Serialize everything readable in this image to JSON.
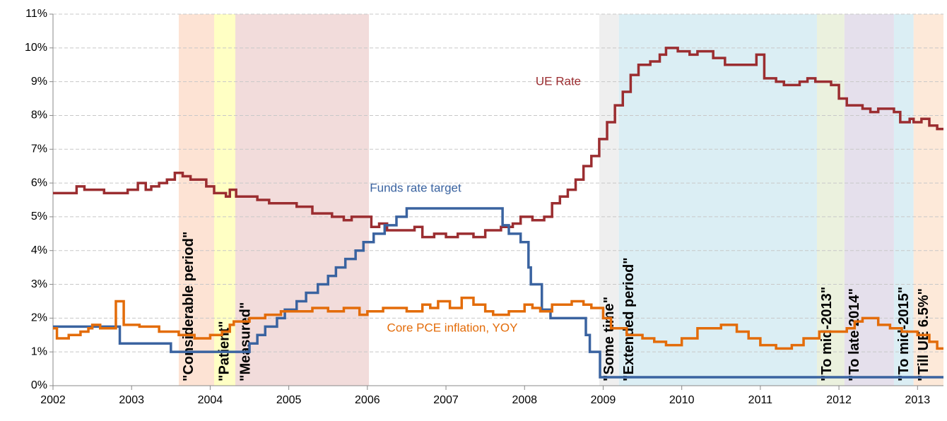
{
  "chart_data": {
    "type": "line",
    "step": true,
    "grid": true,
    "xlim": [
      2002,
      2013.33
    ],
    "ylim": [
      0,
      11
    ],
    "xticks": [
      2002,
      2003,
      2004,
      2005,
      2006,
      2007,
      2008,
      2009,
      2010,
      2011,
      2012,
      2013
    ],
    "yticks": [
      {
        "value": 0,
        "label": "0%"
      },
      {
        "value": 1,
        "label": "1%"
      },
      {
        "value": 2,
        "label": "2%"
      },
      {
        "value": 3,
        "label": "3%"
      },
      {
        "value": 4,
        "label": "4%"
      },
      {
        "value": 5,
        "label": "5%"
      },
      {
        "value": 6,
        "label": "6%"
      },
      {
        "value": 7,
        "label": "7%"
      },
      {
        "value": 8,
        "label": "8%"
      },
      {
        "value": 9,
        "label": "9%"
      },
      {
        "value": 10,
        "label": "10%"
      },
      {
        "value": 11,
        "label": "11%"
      }
    ],
    "bands": [
      {
        "label": "\"Considerable period\"",
        "start": 2003.6,
        "end": 2004.05,
        "color": "#fde3d4"
      },
      {
        "label": "\"Patient\"",
        "start": 2004.05,
        "end": 2004.32,
        "color": "#ffffc4"
      },
      {
        "label": "\"Measured\"",
        "start": 2004.32,
        "end": 2006.02,
        "color": "#f2dcdb"
      },
      {
        "label": "\"Some time\"",
        "start": 2008.95,
        "end": 2009.2,
        "color": "#efefef"
      },
      {
        "label": "\"Extended period\"",
        "start": 2009.2,
        "end": 2011.72,
        "color": "#dbeef4"
      },
      {
        "label": "\"To mid-2013\"",
        "start": 2011.72,
        "end": 2012.07,
        "color": "#ebf1de"
      },
      {
        "label": "\"To late 2014\"",
        "start": 2012.07,
        "end": 2012.7,
        "color": "#e5e0ec"
      },
      {
        "label": "\"To mid-2015\"",
        "start": 2012.7,
        "end": 2012.95,
        "color": "#dbeef4"
      },
      {
        "label": "\"Till UE 6.5%\"",
        "start": 2012.95,
        "end": 2013.33,
        "color": "#fde9d9"
      }
    ],
    "series": [
      {
        "name": "UE Rate",
        "color": "#9b2d30",
        "x": [
          2002.0,
          2002.3,
          2002.4,
          2002.65,
          2002.95,
          2003.08,
          2003.18,
          2003.25,
          2003.35,
          2003.45,
          2003.55,
          2003.65,
          2003.75,
          2003.95,
          2004.05,
          2004.2,
          2004.25,
          2004.33,
          2004.6,
          2004.75,
          2004.95,
          2005.1,
          2005.3,
          2005.55,
          2005.7,
          2005.8,
          2006.05,
          2006.15,
          2006.25,
          2006.6,
          2006.7,
          2006.85,
          2007.0,
          2007.15,
          2007.35,
          2007.5,
          2007.7,
          2007.85,
          2007.95,
          2008.1,
          2008.25,
          2008.35,
          2008.45,
          2008.55,
          2008.65,
          2008.75,
          2008.85,
          2008.95,
          2009.05,
          2009.15,
          2009.25,
          2009.35,
          2009.45,
          2009.6,
          2009.72,
          2009.8,
          2009.95,
          2010.1,
          2010.2,
          2010.4,
          2010.55,
          2010.95,
          2011.05,
          2011.2,
          2011.3,
          2011.5,
          2011.6,
          2011.7,
          2011.9,
          2012.0,
          2012.1,
          2012.3,
          2012.4,
          2012.5,
          2012.7,
          2012.78,
          2012.9,
          2012.95,
          2013.05,
          2013.15,
          2013.25,
          2013.33
        ],
        "values": [
          5.7,
          5.9,
          5.8,
          5.7,
          5.8,
          6.0,
          5.8,
          5.9,
          6.0,
          6.1,
          6.3,
          6.2,
          6.1,
          5.9,
          5.7,
          5.6,
          5.8,
          5.6,
          5.5,
          5.4,
          5.4,
          5.3,
          5.1,
          5.0,
          4.9,
          5.0,
          4.7,
          4.8,
          4.6,
          4.7,
          4.4,
          4.5,
          4.4,
          4.5,
          4.4,
          4.6,
          4.7,
          4.8,
          5.0,
          4.9,
          5.0,
          5.4,
          5.6,
          5.8,
          6.1,
          6.5,
          6.8,
          7.3,
          7.8,
          8.3,
          8.7,
          9.2,
          9.5,
          9.6,
          9.8,
          10.0,
          9.9,
          9.8,
          9.9,
          9.7,
          9.5,
          9.8,
          9.1,
          9.0,
          8.9,
          9.0,
          9.1,
          9.0,
          8.9,
          8.5,
          8.3,
          8.2,
          8.1,
          8.2,
          8.1,
          7.8,
          7.9,
          7.8,
          7.9,
          7.7,
          7.6,
          7.6
        ]
      },
      {
        "name": "Funds rate target",
        "color": "#3a63a0",
        "x": [
          2002.0,
          2002.85,
          2003.5,
          2004.5,
          2004.6,
          2004.7,
          2004.85,
          2004.95,
          2005.1,
          2005.22,
          2005.37,
          2005.5,
          2005.6,
          2005.72,
          2005.85,
          2005.95,
          2006.08,
          2006.22,
          2006.37,
          2006.5,
          2007.72,
          2007.8,
          2007.95,
          2008.05,
          2008.08,
          2008.22,
          2008.33,
          2008.78,
          2008.83,
          2008.96,
          2013.33
        ],
        "values": [
          1.75,
          1.25,
          1.0,
          1.25,
          1.5,
          1.75,
          2.0,
          2.25,
          2.5,
          2.75,
          3.0,
          3.25,
          3.5,
          3.75,
          4.0,
          4.25,
          4.5,
          4.75,
          5.0,
          5.25,
          4.75,
          4.5,
          4.25,
          3.5,
          3.0,
          2.25,
          2.0,
          1.5,
          1.0,
          0.25,
          0.25
        ]
      },
      {
        "name": "Core PCE inflation, YOY",
        "color": "#e36c0a",
        "x": [
          2002.0,
          2002.05,
          2002.2,
          2002.35,
          2002.45,
          2002.5,
          2002.6,
          2002.8,
          2002.9,
          2003.1,
          2003.35,
          2003.6,
          2003.8,
          2004.0,
          2004.15,
          2004.25,
          2004.3,
          2004.5,
          2004.7,
          2004.9,
          2005.3,
          2005.5,
          2005.7,
          2005.9,
          2006.0,
          2006.2,
          2006.5,
          2006.7,
          2006.8,
          2006.9,
          2007.05,
          2007.2,
          2007.35,
          2007.5,
          2007.6,
          2007.8,
          2008.0,
          2008.1,
          2008.2,
          2008.35,
          2008.6,
          2008.75,
          2008.85,
          2009.0,
          2009.1,
          2009.3,
          2009.5,
          2009.65,
          2009.8,
          2010.0,
          2010.2,
          2010.5,
          2010.7,
          2010.85,
          2011.0,
          2011.2,
          2011.4,
          2011.55,
          2011.75,
          2012.1,
          2012.2,
          2012.3,
          2012.5,
          2012.65,
          2012.8,
          2013.0,
          2013.15,
          2013.25,
          2013.33
        ],
        "values": [
          1.7,
          1.4,
          1.5,
          1.6,
          1.7,
          1.8,
          1.7,
          2.5,
          1.8,
          1.75,
          1.6,
          1.5,
          1.4,
          1.5,
          1.6,
          1.8,
          1.9,
          2.0,
          2.1,
          2.2,
          2.3,
          2.2,
          2.3,
          2.1,
          2.2,
          2.3,
          2.2,
          2.4,
          2.3,
          2.5,
          2.3,
          2.6,
          2.4,
          2.2,
          2.1,
          2.2,
          2.4,
          2.3,
          2.2,
          2.4,
          2.5,
          2.4,
          2.3,
          2.0,
          1.7,
          1.5,
          1.4,
          1.3,
          1.2,
          1.4,
          1.7,
          1.8,
          1.6,
          1.4,
          1.2,
          1.1,
          1.2,
          1.4,
          1.6,
          1.7,
          1.9,
          2.0,
          1.8,
          1.7,
          1.6,
          1.5,
          1.3,
          1.1,
          1.1
        ]
      }
    ]
  }
}
